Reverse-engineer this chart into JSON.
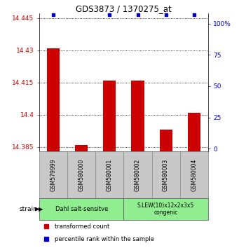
{
  "title": "GDS3873 / 1370275_at",
  "samples": [
    "GSM579999",
    "GSM580000",
    "GSM580001",
    "GSM580002",
    "GSM580003",
    "GSM580004"
  ],
  "transformed_counts": [
    14.431,
    14.386,
    14.416,
    14.416,
    14.393,
    14.401
  ],
  "percentile_ranks": [
    100,
    0,
    100,
    100,
    100,
    100
  ],
  "ylim_left": [
    14.383,
    14.447
  ],
  "yticks_left": [
    14.385,
    14.4,
    14.415,
    14.43,
    14.445
  ],
  "ytick_labels_left": [
    "14.385",
    "14.4",
    "14.415",
    "14.43",
    "14.445"
  ],
  "ylim_right": [
    -2.0,
    108.0
  ],
  "yticks_right": [
    0,
    25,
    50,
    75,
    100
  ],
  "ytick_labels_right": [
    "0",
    "25",
    "50",
    "75",
    "100%"
  ],
  "bar_color": "#cc0000",
  "dot_color": "#0000cc",
  "bar_baseline": 14.383,
  "group1_label": "Dahl salt-sensitve",
  "group2_label": "S.LEW(10)x12x2x3x5\ncongenic",
  "group_color": "#90ee90",
  "sample_box_color": "#c8c8c8",
  "xlabel": "strain",
  "legend_items": [
    {
      "color": "#cc0000",
      "label": "transformed count"
    },
    {
      "color": "#0000cc",
      "label": "percentile rank within the sample"
    }
  ]
}
